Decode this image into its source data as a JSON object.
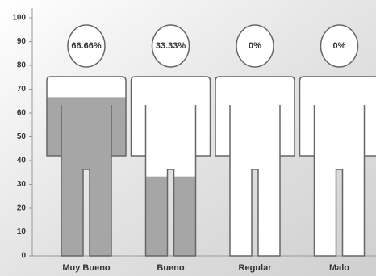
{
  "chart_data": {
    "type": "pictograph",
    "categories": [
      "Muy Bueno",
      "Bueno",
      "Regular",
      "Malo"
    ],
    "values": [
      66.66,
      33.33,
      0,
      0
    ],
    "value_labels": [
      "66.66%",
      "33.33%",
      "0%",
      "0%"
    ],
    "color": "#a6a6a6",
    "ylim": [
      0,
      100
    ],
    "yticks": [
      0,
      10,
      20,
      30,
      40,
      50,
      60,
      70,
      80,
      90,
      100
    ]
  }
}
